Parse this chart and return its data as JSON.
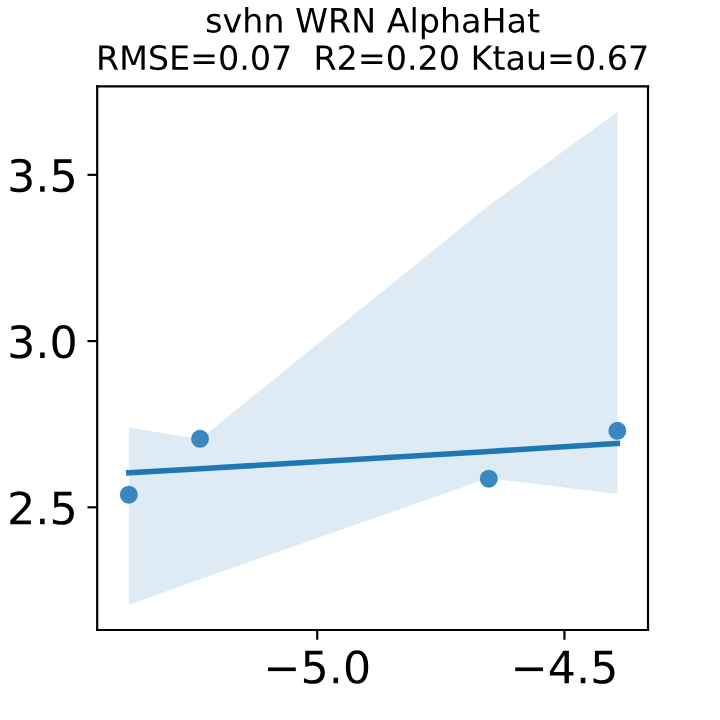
{
  "chart_data": {
    "type": "scatter",
    "title": "svhn WRN AlphaHat",
    "subtitle": "RMSE=0.07  R2=0.20 Ktau=0.67",
    "x": [
      -5.381,
      -5.237,
      -4.653,
      -4.393
    ],
    "series": [
      {
        "color": "#3a87c0",
        "marker": "circle",
        "values": [
          2.538,
          2.706,
          2.586,
          2.73
        ]
      },
      {
        "type": "line",
        "color": "#1f77b4",
        "x": [
          -5.381,
          -5.237,
          -4.653,
          -4.393
        ],
        "values": [
          2.604,
          2.616,
          2.668,
          2.692
        ],
        "lower": [
          2.207,
          2.284,
          2.588,
          2.54
        ],
        "upper": [
          2.74,
          2.705,
          3.408,
          3.69
        ]
      }
    ],
    "grid": false,
    "xlim": [
      -5.445,
      -4.331
    ],
    "ylim": [
      2.131,
      3.766
    ],
    "xticks": [
      {
        "value": -5.0,
        "label": "−5.0"
      },
      {
        "value": -4.5,
        "label": "−4.5"
      }
    ],
    "yticks": [
      {
        "value": 2.5,
        "label": "2.5"
      },
      {
        "value": 3.0,
        "label": "3.0"
      },
      {
        "value": 3.5,
        "label": "3.5"
      }
    ]
  }
}
